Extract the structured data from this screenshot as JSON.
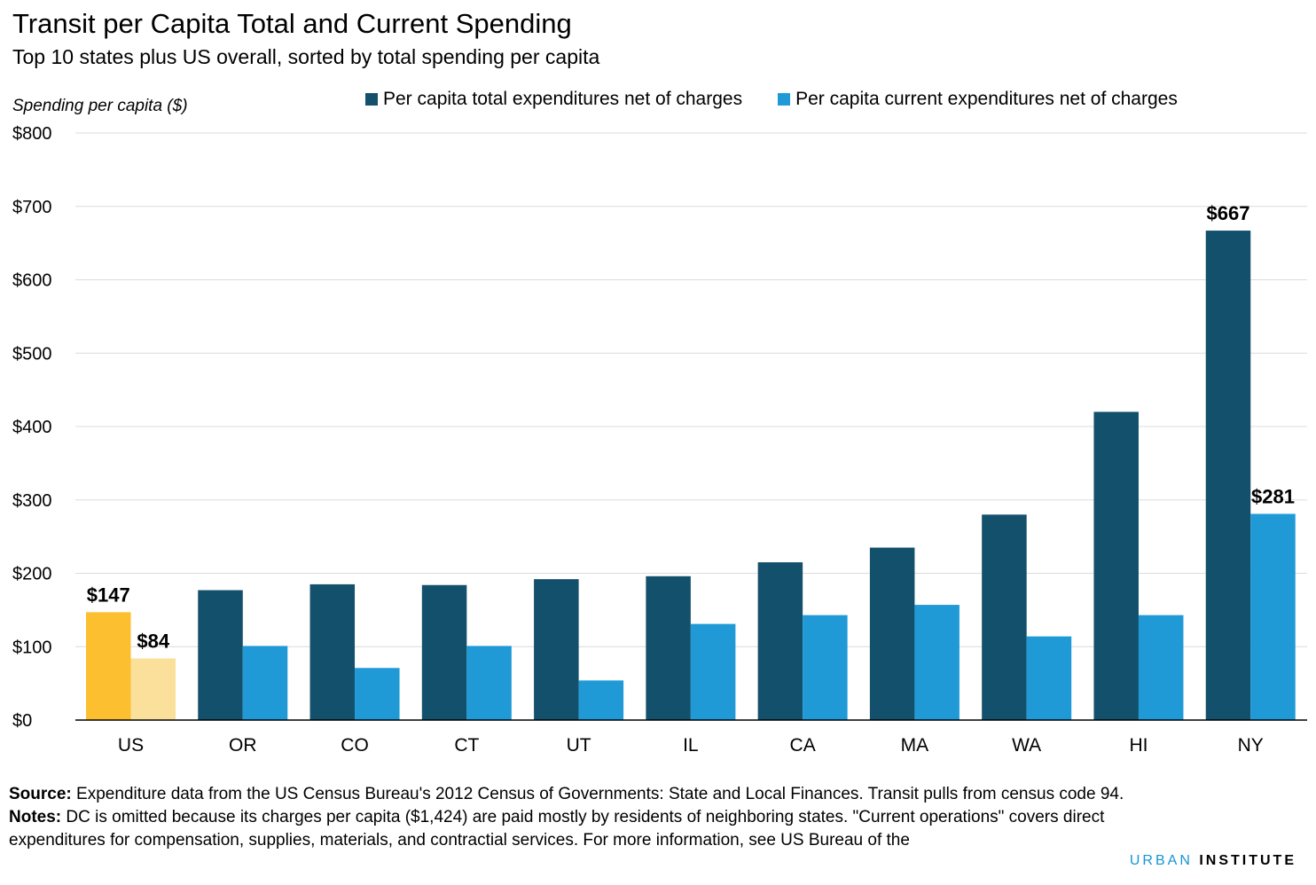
{
  "title": "Transit per Capita Total and Current Spending",
  "subtitle": "Top 10 states plus US overall, sorted by total spending per capita",
  "colors": {
    "total": "#12506b",
    "current": "#1f9ad6",
    "us_total": "#fbbf30",
    "us_current": "#fbe09b",
    "grid": "#dcdcdc",
    "axis": "#000000"
  },
  "chart_data": {
    "type": "bar",
    "ylabel": "Spending per capita ($)",
    "xlabel": "",
    "ylim": [
      0,
      800
    ],
    "yticks": [
      "$0",
      "$100",
      "$200",
      "$300",
      "$400",
      "$500",
      "$600",
      "$700",
      "$800"
    ],
    "grid": true,
    "legend_position": "top",
    "highlight_category": "US",
    "categories": [
      "US",
      "OR",
      "CO",
      "CT",
      "UT",
      "IL",
      "CA",
      "MA",
      "WA",
      "HI",
      "NY"
    ],
    "series": [
      {
        "name": "Per capita total expenditures net of charges",
        "values": [
          147,
          177,
          185,
          184,
          192,
          196,
          215,
          235,
          280,
          420,
          667
        ]
      },
      {
        "name": "Per capita current expenditures net of charges",
        "values": [
          84,
          101,
          71,
          101,
          54,
          131,
          143,
          157,
          114,
          143,
          281
        ]
      }
    ],
    "data_labels": [
      {
        "category": "US",
        "series": 0,
        "text": "$147"
      },
      {
        "category": "US",
        "series": 1,
        "text": "$84"
      },
      {
        "category": "NY",
        "series": 0,
        "text": "$667"
      },
      {
        "category": "NY",
        "series": 1,
        "text": "$281"
      }
    ]
  },
  "footer": {
    "source_label": "Source:",
    "source_text": "Expenditure data from the US Census Bureau's 2012 Census of Governments: State and Local Finances. Transit pulls from census code 94.",
    "notes_label": "Notes:",
    "notes_text": "DC is omitted because its charges per capita ($1,424) are paid mostly by residents of neighboring states. \"Current operations\" covers direct expenditures for compensation, supplies, materials, and contractial services. For more information, see US Bureau of the"
  },
  "logo": {
    "urban": "URBAN",
    "institute": "INSTITUTE"
  }
}
